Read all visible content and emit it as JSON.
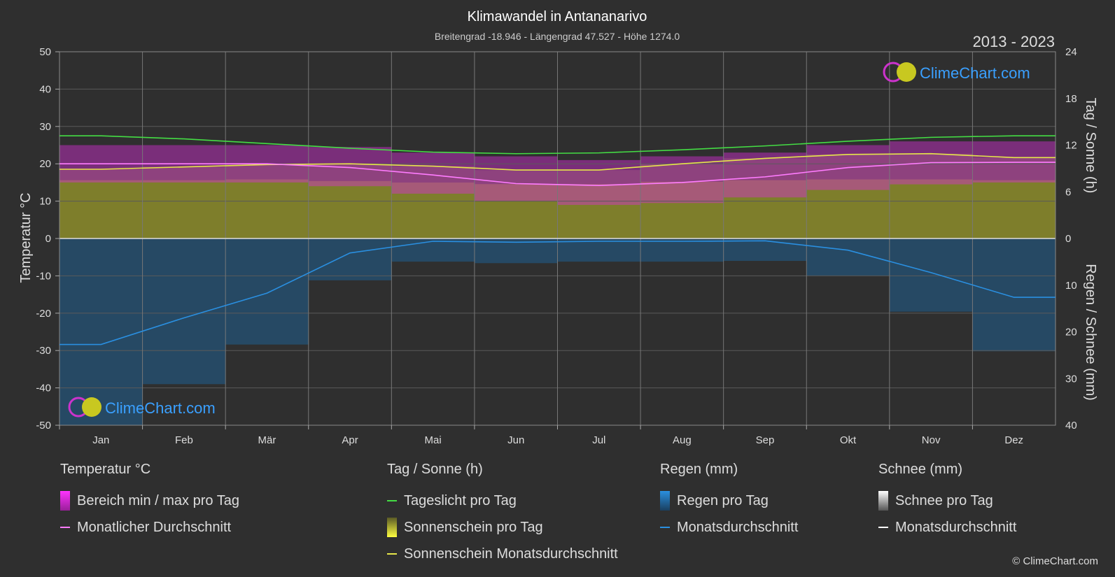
{
  "title": "Klimawandel in Antananarivo",
  "subtitle": "Breitengrad -18.946 - Längengrad 47.527 - Höhe 1274.0",
  "year_range": "2013 - 2023",
  "logo_text": "ClimeChart.com",
  "copyright": "© ClimeChart.com",
  "colors": {
    "background": "#2f2f2f",
    "temp_range": "#d62fd6",
    "temp_avg": "#ff7cff",
    "daylight": "#44dd44",
    "sunshine_fill": "#8c8c2a",
    "sunshine_avg": "#e6e64a",
    "rain_fill": "#1f5f8f",
    "rain_avg": "#2a8fe0",
    "grid": "#5a5a5a"
  },
  "chart_data": {
    "type": "line",
    "categories": [
      "Jan",
      "Feb",
      "Mär",
      "Apr",
      "Mai",
      "Jun",
      "Jul",
      "Aug",
      "Sep",
      "Okt",
      "Nov",
      "Dez"
    ],
    "y_left": {
      "label": "Temperatur °C",
      "range": [
        -50,
        50
      ],
      "ticks": [
        "50",
        "40",
        "30",
        "20",
        "10",
        "0",
        "-10",
        "-20",
        "-30",
        "-40",
        "-50"
      ]
    },
    "y_right_top": {
      "label": "Tag / Sonne (h)",
      "range": [
        0,
        24
      ],
      "ticks": [
        "24",
        "18",
        "12",
        "6",
        "0"
      ]
    },
    "y_right_bottom": {
      "label": "Regen / Schnee (mm)",
      "range": [
        0,
        40
      ],
      "ticks": [
        "0",
        "10",
        "20",
        "30",
        "40"
      ]
    },
    "series": [
      {
        "name": "Monatlicher Durchschnitt",
        "axis": "temp",
        "values": [
          20.0,
          20.0,
          20.0,
          19.0,
          17.0,
          14.7,
          14.2,
          15.0,
          16.5,
          19.0,
          20.3,
          20.4
        ]
      },
      {
        "name": "Tageslicht pro Tag",
        "axis": "hours",
        "values": [
          13.2,
          12.8,
          12.2,
          11.6,
          11.1,
          10.9,
          11.0,
          11.4,
          11.9,
          12.5,
          13.0,
          13.2
        ]
      },
      {
        "name": "Sonnenschein Monatsdurchschnitt",
        "axis": "hours",
        "values": [
          8.9,
          9.2,
          9.5,
          9.6,
          9.3,
          8.8,
          8.8,
          9.6,
          10.3,
          10.8,
          10.9,
          10.4
        ]
      },
      {
        "name": "Monatsdurchschnitt",
        "axis": "rain",
        "values": [
          22.7,
          17.0,
          11.7,
          3.1,
          0.6,
          0.8,
          0.6,
          0.6,
          0.5,
          2.5,
          7.3,
          12.6
        ]
      }
    ],
    "temp_range_band": {
      "max": [
        25,
        25,
        25,
        24.5,
        23,
        22,
        21,
        22,
        23,
        25,
        26,
        26
      ],
      "min": [
        15,
        15,
        15,
        14,
        12,
        10,
        9,
        9.5,
        11,
        13,
        14.5,
        15
      ]
    },
    "sunshine_band_top_hours": [
      7.5,
      7.5,
      7.6,
      7.4,
      7.2,
      7.0,
      7.0,
      7.3,
      7.5,
      7.6,
      7.6,
      7.5
    ],
    "grid": true
  },
  "legend": {
    "groups": [
      {
        "header": "Temperatur °C",
        "items": [
          {
            "label": "Bereich min / max pro Tag"
          },
          {
            "label": "Monatlicher Durchschnitt"
          }
        ]
      },
      {
        "header": "Tag / Sonne (h)",
        "items": [
          {
            "label": "Tageslicht pro Tag"
          },
          {
            "label": "Sonnenschein pro Tag"
          },
          {
            "label": "Sonnenschein Monatsdurchschnitt"
          }
        ]
      },
      {
        "header": "Regen (mm)",
        "items": [
          {
            "label": "Regen pro Tag"
          },
          {
            "label": "Monatsdurchschnitt"
          }
        ]
      },
      {
        "header": "Schnee (mm)",
        "items": [
          {
            "label": "Schnee pro Tag"
          },
          {
            "label": "Monatsdurchschnitt"
          }
        ]
      }
    ]
  }
}
